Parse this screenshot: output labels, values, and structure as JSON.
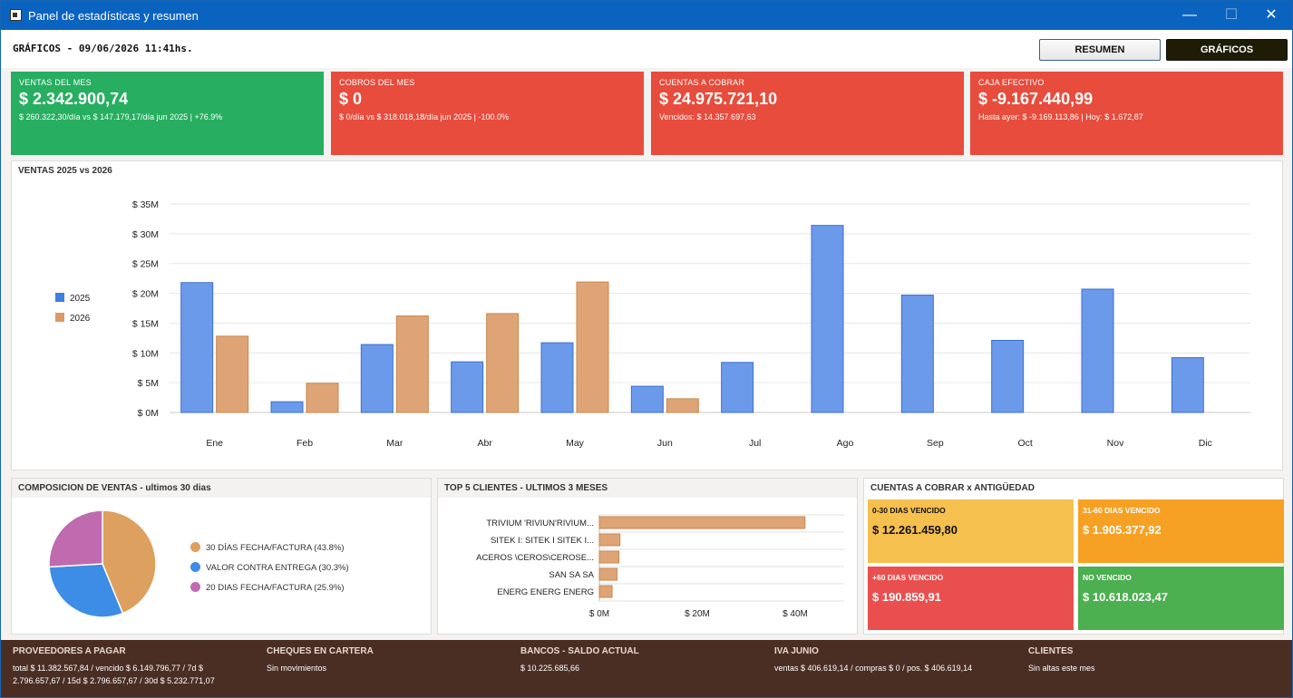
{
  "window": {
    "title": "Panel de estadísticas y resumen"
  },
  "header": {
    "text": "GRÁFICOS - 09/06/2026 11:41hs.",
    "resumen_label": "RESUMEN",
    "graficos_label": "GRÁFICOS"
  },
  "cards": [
    {
      "label": "VENTAS DEL MES",
      "value": "$ 2.342.900,74",
      "sub": "$ 260.322,30/día vs $ 147.179,17/día jun 2025  |  +76.9%",
      "color": "#27ae60"
    },
    {
      "label": "COBROS DEL MES",
      "value": "$ 0",
      "sub": "$ 0/día vs $ 318.018,18/día jun 2025  |  -100.0%",
      "color": "#e74c3c"
    },
    {
      "label": "CUENTAS A COBRAR",
      "value": "$ 24.975.721,10",
      "sub": "Vencidos: $ 14.357.697,63",
      "color": "#e74c3c"
    },
    {
      "label": "CAJA EFECTIVO",
      "value": "$ -9.167.440,99",
      "sub": "Hasta ayer: $ -9.169.113,86  |  Hoy: $ 1.672,87",
      "color": "#e74c3c"
    }
  ],
  "ventas_panel": {
    "title": "VENTAS 2025 vs 2026"
  },
  "pie_panel": {
    "title": "COMPOSICION DE VENTAS - ultimos 30 dias"
  },
  "top_panel": {
    "title": "TOP 5 CLIENTES - ULTIMOS 3 MESES"
  },
  "aging_panel": {
    "title": "CUENTAS A COBRAR x ANTIGÜEDAD",
    "boxes": [
      {
        "label": "0-30 DIAS VENCIDO",
        "value": "$ 12.261.459,80",
        "color": "#f6c04f"
      },
      {
        "label": "31-60 DIAS VENCIDO",
        "value": "$ 1.905.377,92",
        "color": "#f7a124"
      },
      {
        "label": "+60 DIAS VENCIDO",
        "value": "$ 190.859,91",
        "color": "#ea4f4f"
      },
      {
        "label": "NO VENCIDO",
        "value": "$ 10.618.023,47",
        "color": "#4caf50"
      }
    ]
  },
  "footer": {
    "proveedores": {
      "title": "PROVEEDORES A PAGAR",
      "text1": "total $ 11.382.567,84 / vencido $ 6.149.796,77 / 7d $",
      "text2": "2.796.657,67 / 15d $ 2.796.657,67 / 30d $ 5.232.771,07"
    },
    "cheques": {
      "title": "CHEQUES EN CARTERA",
      "text": "Sin movimientos"
    },
    "bancos": {
      "title": "BANCOS - SALDO ACTUAL",
      "text": "$ 10.225.685,66"
    },
    "iva": {
      "title": "IVA JUNIO",
      "text": "ventas $ 406.619,14 / compras $ 0 / pos. $ 406.619,14"
    },
    "clientes": {
      "title": "CLIENTES",
      "text": "Sin altas este mes"
    }
  },
  "colors": {
    "c2025": "#6c9aea",
    "c2026": "#dea476",
    "pie1": "#dea05e",
    "pie2": "#3d8de6",
    "pie3": "#c06ab0"
  },
  "chart_data": [
    {
      "type": "bar",
      "title": "VENTAS 2025 vs 2026",
      "categories": [
        "Ene",
        "Feb",
        "Mar",
        "Abr",
        "May",
        "Jun",
        "Jul",
        "Ago",
        "Sep",
        "Oct",
        "Nov",
        "Dic"
      ],
      "series": [
        {
          "name": "2025",
          "values": [
            21.8,
            1.8,
            11.4,
            8.5,
            11.7,
            4.4,
            8.4,
            31.4,
            19.7,
            12.1,
            20.7,
            9.2
          ]
        },
        {
          "name": "2026",
          "values": [
            12.8,
            4.9,
            16.2,
            16.6,
            21.9,
            2.3,
            null,
            null,
            null,
            null,
            null,
            null
          ]
        }
      ],
      "yticks": [
        "$ 0M",
        "$ 5M",
        "$ 10M",
        "$ 15M",
        "$ 20M",
        "$ 25M",
        "$ 30M",
        "$ 35M"
      ],
      "ylim": [
        0,
        35
      ],
      "legend": "left"
    },
    {
      "type": "pie",
      "labels": [
        "30 DÍAS FECHA/FACTURA (43.8%)",
        "VALOR CONTRA ENTREGA (30.3%)",
        "20 DIAS FECHA/FACTURA (25.9%)"
      ],
      "values": [
        43.8,
        30.3,
        25.9
      ]
    },
    {
      "type": "bar",
      "orientation": "horizontal",
      "title": "TOP 5 CLIENTES - ULTIMOS 3 MESES",
      "categories": [
        "TRIVIUM TRIVIUM TRIVIUM...",
        "SITEK I SITEK I SITEK I...",
        "ACEROS ACEROS ACEROS...",
        "SAN SAN SA",
        "ENERG ENERG ENERG"
      ],
      "category_labels": [
        "TRIVIUM 'RIVIUN'RIVIUM...",
        "SITEK I: SITEK I SITEK I...",
        "ACEROS \\CEROS\\CEROSE...",
        "SAN      SA      SA",
        "ENERG  ENERG  ENERG"
      ],
      "values": [
        42,
        4.2,
        4.0,
        3.6,
        2.6
      ],
      "xticks": [
        "$ 0M",
        "$ 20M",
        "$ 40M"
      ],
      "xlim": [
        0,
        50
      ]
    }
  ]
}
